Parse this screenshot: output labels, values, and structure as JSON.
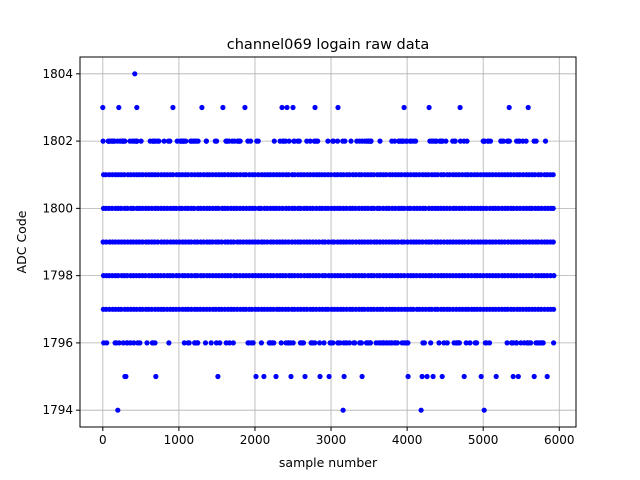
{
  "chart_data": {
    "type": "scatter",
    "title": "channel069 logain raw data",
    "xlabel": "sample number",
    "ylabel": "ADC Code",
    "xlim": [
      -300,
      6220
    ],
    "ylim": [
      1793.5,
      1804.5
    ],
    "xticks": [
      0,
      1000,
      2000,
      3000,
      4000,
      5000,
      6000
    ],
    "yticks": [
      1794,
      1796,
      1798,
      1800,
      1802,
      1804
    ],
    "grid": true,
    "color": "#0000ff",
    "marker": "dot",
    "x_range": [
      0,
      5950
    ],
    "dense_levels": [
      1797,
      1798,
      1799,
      1800,
      1801
    ],
    "sparse_levels": [
      {
        "y": 1802,
        "count": 150
      },
      {
        "y": 1796,
        "count": 140
      }
    ],
    "outliers": [
      {
        "y": 1804,
        "x": [
          421
        ]
      },
      {
        "y": 1803,
        "x": [
          0,
          210,
          447,
          921,
          1303,
          1579,
          1868,
          2355,
          2421,
          2500,
          2789,
          3092,
          3961,
          4289,
          4697,
          5342,
          5592
        ]
      },
      {
        "y": 1795,
        "x": [
          290,
          303,
          697,
          1513,
          2013,
          2118,
          2276,
          2474,
          2658,
          2855,
          2974,
          3171,
          3408,
          4013,
          4197,
          4263,
          4342,
          4461,
          4750,
          4974,
          5171,
          5395,
          5461,
          5671,
          5842
        ]
      },
      {
        "y": 1794,
        "x": [
          197,
          3158,
          4184,
          5013
        ]
      }
    ]
  }
}
